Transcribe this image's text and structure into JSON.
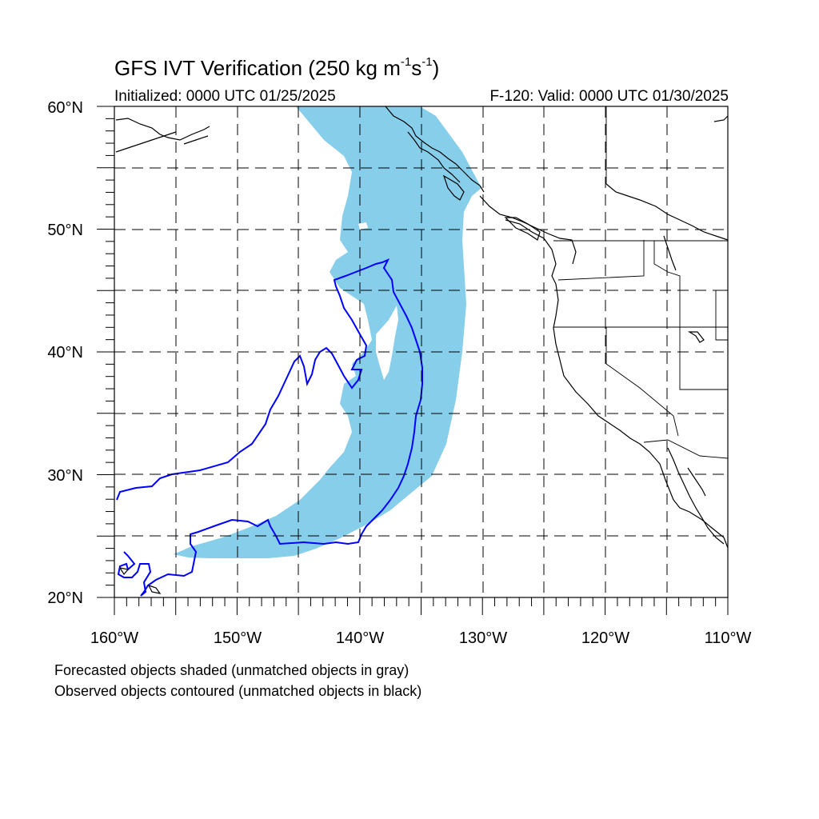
{
  "title": {
    "prefix": "GFS IVT Verification (250 kg m",
    "exp1": "-1",
    "mid": "s",
    "exp2": "-1",
    "suffix": ")"
  },
  "initialized": "Initialized: 0000 UTC 01/25/2025",
  "valid": "F-120: Valid: 0000 UTC 01/30/2025",
  "axes": {
    "lat_labels": [
      "20°N",
      "30°N",
      "40°N",
      "50°N",
      "60°N"
    ],
    "lon_labels": [
      "160°W",
      "150°W",
      "140°W",
      "130°W",
      "120°W",
      "110°W"
    ],
    "lat_range": [
      20,
      60
    ],
    "lon_range": [
      -160,
      -110
    ]
  },
  "notes": {
    "line1": "Forecasted objects shaded (unmatched objects in gray)",
    "line2": "Observed objects contoured (unmatched objects in black)"
  },
  "colors": {
    "forecast_fill": "#87ceeb",
    "observed_contour": "#0000ff",
    "coastline": "#000000",
    "grid": "#000000"
  }
}
